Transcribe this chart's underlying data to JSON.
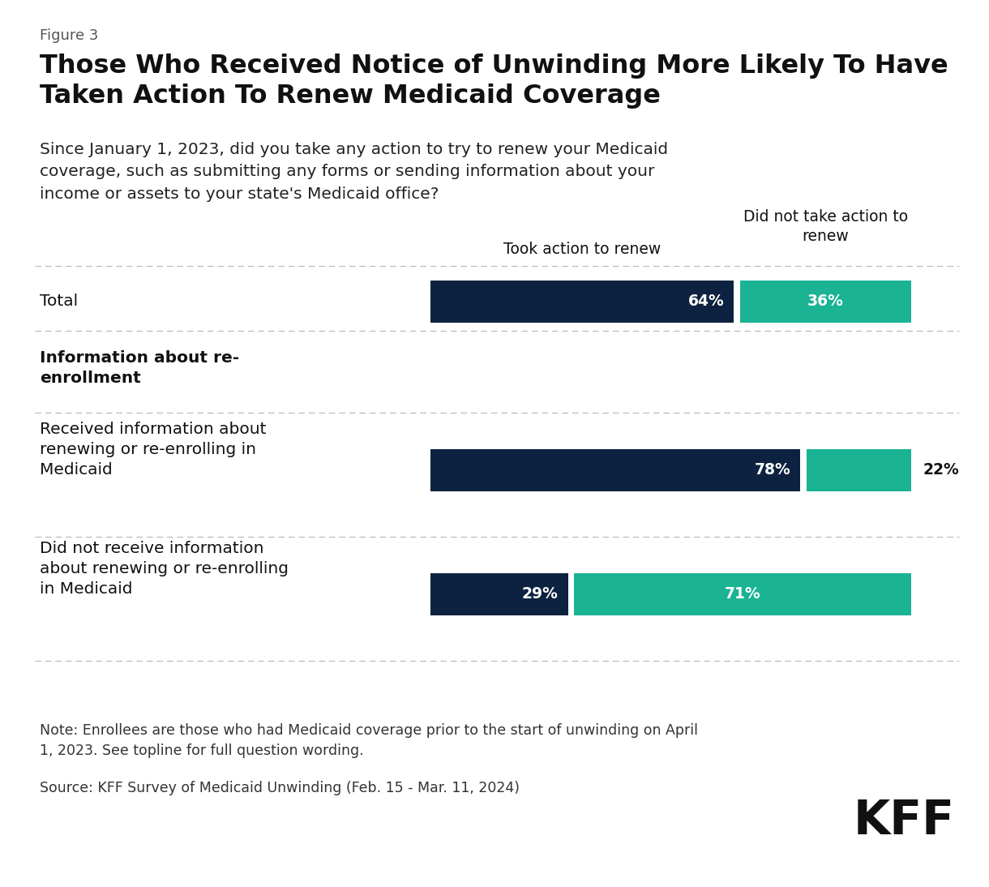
{
  "figure_label": "Figure 3",
  "title": "Those Who Received Notice of Unwinding More Likely To Have\nTaken Action To Renew Medicaid Coverage",
  "subtitle": "Since January 1, 2023, did you take any action to try to renew your Medicaid\ncoverage, such as submitting any forms or sending information about your\nincome or assets to your state's Medicaid office?",
  "col_header_1": "Took action to renew",
  "col_header_2": "Did not take action to\nrenew",
  "rows": [
    {
      "label": "Total",
      "val1": 64,
      "val2": 36,
      "is_section_header": false,
      "is_bold_label": false
    },
    {
      "label": "Information about re-\nenrollment",
      "val1": null,
      "val2": null,
      "is_section_header": true,
      "is_bold_label": true
    },
    {
      "label": "Received information about\nrenewing or re-enrolling in\nMedicaid",
      "val1": 78,
      "val2": 22,
      "is_section_header": false,
      "is_bold_label": false
    },
    {
      "label": "Did not receive information\nabout renewing or re-enrolling\nin Medicaid",
      "val1": 29,
      "val2": 71,
      "is_section_header": false,
      "is_bold_label": false
    }
  ],
  "color_dark": "#0d2240",
  "color_teal": "#1ab394",
  "note_text": "Note: Enrollees are those who had Medicaid coverage prior to the start of unwinding on April\n1, 2023. See topline for full question wording.",
  "source_text": "Source: KFF Survey of Medicaid Unwinding (Feb. 15 - Mar. 11, 2024)",
  "kff_logo_text": "KFF",
  "fig_width": 12.2,
  "fig_height": 10.94,
  "background_color": "#ffffff"
}
